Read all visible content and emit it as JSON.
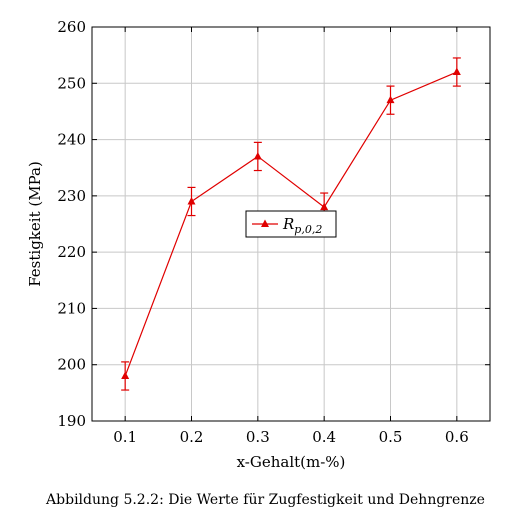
{
  "chart_data": {
    "type": "line",
    "xlabel": "x-Gehalt(m-%)",
    "ylabel": "Festigkeit (MPa)",
    "xlim": [
      0.05,
      0.65
    ],
    "ylim": [
      190,
      260
    ],
    "xticks": [
      "0.1",
      "0.2",
      "0.3",
      "0.4",
      "0.5",
      "0.6"
    ],
    "yticks": [
      "190",
      "200",
      "210",
      "220",
      "230",
      "240",
      "250",
      "260"
    ],
    "grid": true,
    "legend_position": "center",
    "series": [
      {
        "name": "R",
        "name_subscript": "p,0,2",
        "color": "#e00000",
        "marker": "triangle",
        "x": [
          0.1,
          0.2,
          0.3,
          0.4,
          0.5,
          0.6
        ],
        "y": [
          198,
          229,
          237,
          228,
          247,
          252
        ],
        "error": [
          2.5,
          2.5,
          2.5,
          2.5,
          2.5,
          2.5
        ]
      }
    ]
  },
  "caption": "Abbildung 5.2.2: Die Werte für Zugfestigkeit und Dehngrenze"
}
